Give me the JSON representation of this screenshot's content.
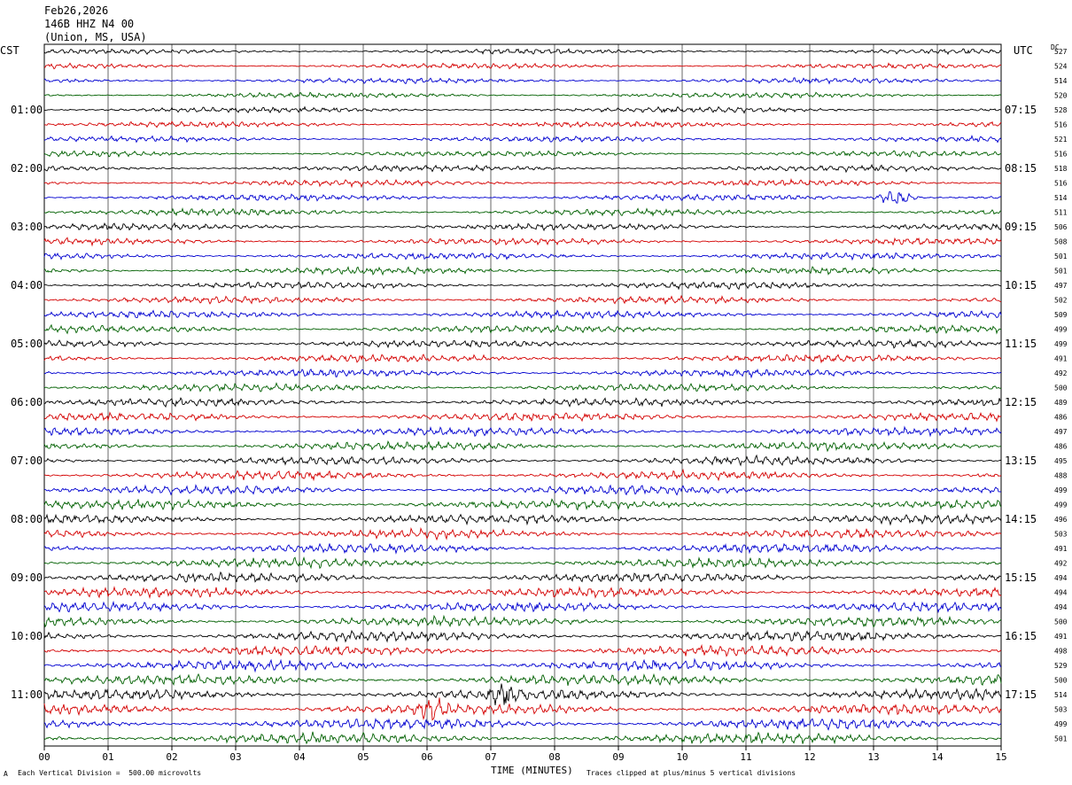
{
  "header": {
    "date": "Feb26,2026",
    "station": "146B HHZ N4 00",
    "location": "(Union, MS, USA)"
  },
  "labels": {
    "left_tz": "CST",
    "right_tz": "UTC",
    "dc_header": "DC",
    "x_title": "TIME (MINUTES)",
    "footer_left": "Each Vertical Division =  500.00 microvolts",
    "footer_right": "Traces clipped at plus/minus 5 vertical divisions",
    "footer_mark": "A"
  },
  "colors": {
    "trace_cycle": [
      "#000000",
      "#d40000",
      "#0000d0",
      "#006000"
    ],
    "grid": "#000000"
  },
  "chart_data": {
    "type": "line",
    "title": "",
    "xlabel": "TIME (MINUTES)",
    "xlim": [
      0,
      15
    ],
    "x_ticks": [
      "00",
      "01",
      "02",
      "03",
      "04",
      "05",
      "06",
      "07",
      "08",
      "09",
      "10",
      "11",
      "12",
      "13",
      "14",
      "15"
    ],
    "left_hour_labels": [
      "01:00",
      "02:00",
      "03:00",
      "04:00",
      "05:00",
      "06:00",
      "07:00",
      "08:00",
      "09:00",
      "10:00",
      "11:00"
    ],
    "right_hour_labels": [
      "07:15",
      "08:15",
      "09:15",
      "10:15",
      "11:15",
      "12:15",
      "13:15",
      "14:15",
      "15:15",
      "16:15",
      "17:15"
    ],
    "dc_offsets": [
      527,
      524,
      514,
      520,
      528,
      516,
      521,
      516,
      518,
      516,
      514,
      511,
      506,
      508,
      501,
      501,
      497,
      502,
      509,
      499,
      499,
      491,
      492,
      500,
      489,
      486,
      497,
      486,
      495,
      488,
      499,
      499,
      496,
      503,
      491,
      492,
      494,
      494,
      494,
      500,
      491,
      498,
      529,
      500,
      514,
      503,
      499,
      501
    ],
    "trace_count": 48,
    "minutes_per_trace": 15,
    "events": [
      {
        "trace": 10,
        "minute": 13.35,
        "note": "local burst"
      },
      {
        "trace": 44,
        "minute": 7.2,
        "note": "burst"
      },
      {
        "trace": 45,
        "minute": 6.1,
        "note": "burst"
      }
    ]
  }
}
